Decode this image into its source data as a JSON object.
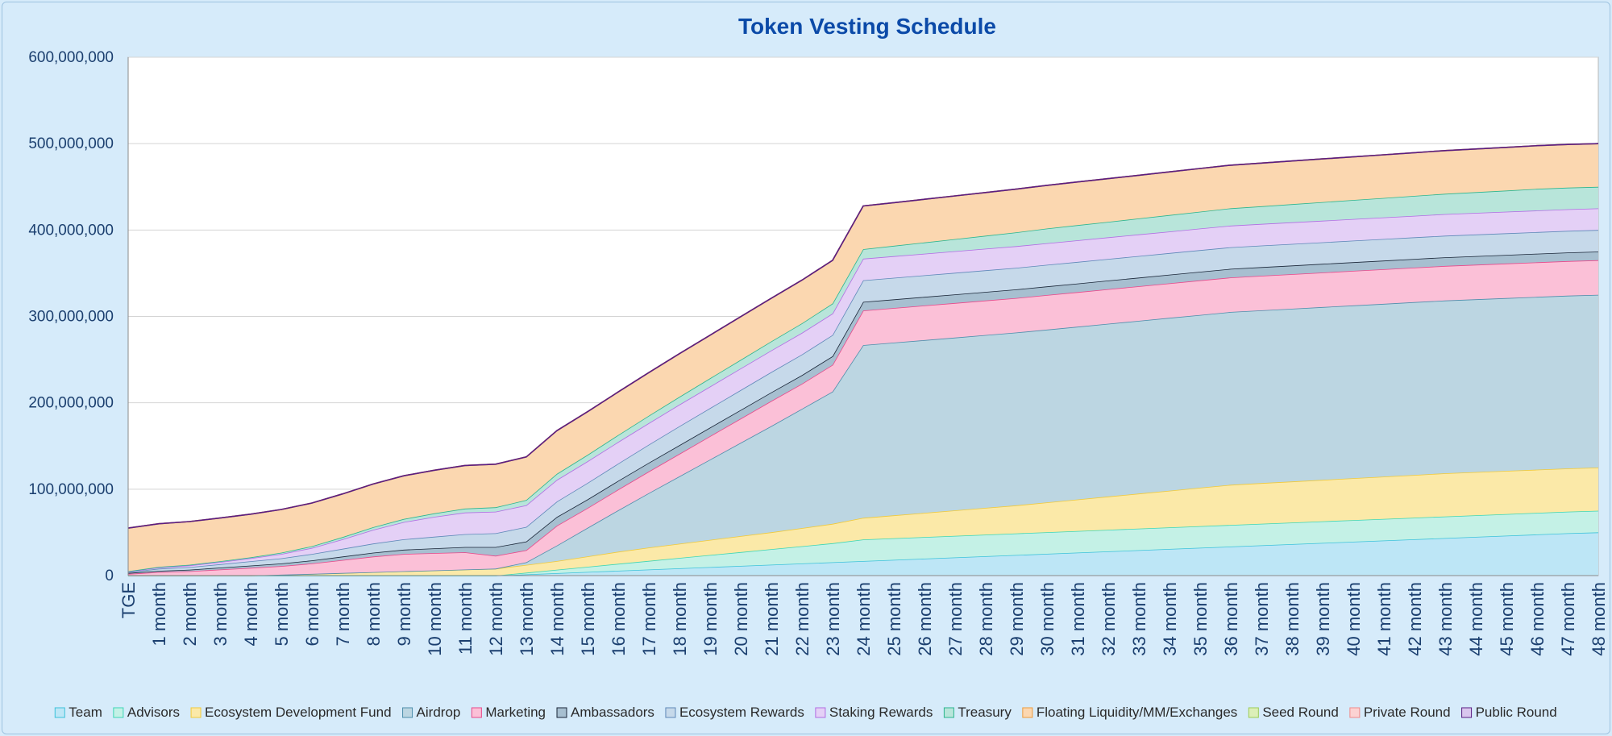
{
  "chart_data": {
    "type": "area",
    "stacked": true,
    "title": "Token Vesting Schedule",
    "xlabel": "",
    "ylabel": "",
    "ylim": [
      0,
      600000000
    ],
    "yticks": [
      0,
      100000000,
      200000000,
      300000000,
      400000000,
      500000000,
      600000000
    ],
    "ytick_labels": [
      "0",
      "100,000,000",
      "200,000,000",
      "300,000,000",
      "400,000,000",
      "500,000,000",
      "600,000,000"
    ],
    "grid": true,
    "legend_position": "bottom",
    "categories": [
      "TGE",
      "1 month",
      "2 month",
      "3 month",
      "4 month",
      "5 month",
      "6 month",
      "7 month",
      "8 month",
      "9 month",
      "10 month",
      "11 month",
      "12 month",
      "13 month",
      "14 month",
      "15 month",
      "16 month",
      "17 month",
      "18 month",
      "19 month",
      "20 month",
      "21 month",
      "22 month",
      "23 month",
      "24 month",
      "25 month",
      "26 month",
      "27 month",
      "28 month",
      "29 month",
      "30 month",
      "31 month",
      "32 month",
      "33 month",
      "34 month",
      "35 month",
      "36 month",
      "37 month",
      "38 month",
      "39 month",
      "40 month",
      "41 month",
      "42 month",
      "43 month",
      "44 month",
      "45 month",
      "46 month",
      "47 month",
      "48 month"
    ],
    "series": [
      {
        "name": "Team",
        "fill": "#bde6f6",
        "stroke": "#3cc2da",
        "values": [
          0,
          0,
          0,
          0,
          0,
          0,
          0,
          0,
          0,
          0,
          0,
          0,
          0,
          1400000,
          2800000,
          4200000,
          5600000,
          7000000,
          8400000,
          9800000,
          11200000,
          12600000,
          14000000,
          15400000,
          16800000,
          18200000,
          19600000,
          21000000,
          22400000,
          23800000,
          25200000,
          26600000,
          28000000,
          29400000,
          30800000,
          32200000,
          33600000,
          35000000,
          36400000,
          37800000,
          39200000,
          40600000,
          42000000,
          43400000,
          44800000,
          46200000,
          47600000,
          49000000,
          50000000
        ]
      },
      {
        "name": "Advisors",
        "fill": "#c4f1e6",
        "stroke": "#3dd6b5",
        "values": [
          0,
          0,
          0,
          0,
          0,
          0,
          0,
          0,
          0,
          0,
          0,
          0,
          0,
          2000000,
          4000000,
          6000000,
          8000000,
          10000000,
          12000000,
          14000000,
          16000000,
          18000000,
          20000000,
          22000000,
          25000000,
          25000000,
          25000000,
          25000000,
          25000000,
          25000000,
          25000000,
          25000000,
          25000000,
          25000000,
          25000000,
          25000000,
          25000000,
          25000000,
          25000000,
          25000000,
          25000000,
          25000000,
          25000000,
          25000000,
          25000000,
          25000000,
          25000000,
          25000000,
          25000000
        ]
      },
      {
        "name": "Ecosystem Development Fund",
        "fill": "#fbe9a8",
        "stroke": "#f0c93a",
        "values": [
          0,
          0,
          0,
          0,
          0,
          1000000,
          2000000,
          3000000,
          4000000,
          5000000,
          6000000,
          7000000,
          8000000,
          9000000,
          10000000,
          12000000,
          14000000,
          15500000,
          16500000,
          17500000,
          18500000,
          19500000,
          21000000,
          22500000,
          25000000,
          26500000,
          28000000,
          29500000,
          31000000,
          32500000,
          34500000,
          36500000,
          38500000,
          40500000,
          42500000,
          44500000,
          46500000,
          47000000,
          47500000,
          48000000,
          48500000,
          49000000,
          49500000,
          50000000,
          50000000,
          50000000,
          50000000,
          50000000,
          50000000
        ]
      },
      {
        "name": "Airdrop",
        "fill": "#bcd6e2",
        "stroke": "#4d8eab",
        "values": [
          0,
          0,
          0,
          0,
          0,
          0,
          0,
          0,
          0,
          0,
          0,
          0,
          0,
          3000000,
          18000000,
          33000000,
          48000000,
          63000000,
          78000000,
          93000000,
          108000000,
          123000000,
          138000000,
          153000000,
          200000000,
          200000000,
          200000000,
          200000000,
          200000000,
          200000000,
          200000000,
          200000000,
          200000000,
          200000000,
          200000000,
          200000000,
          200000000,
          200000000,
          200000000,
          200000000,
          200000000,
          200000000,
          200000000,
          200000000,
          200000000,
          200000000,
          200000000,
          200000000,
          200000000
        ]
      },
      {
        "name": "Marketing",
        "fill": "#fbc0d7",
        "stroke": "#e8488a",
        "values": [
          2000000,
          4000000,
          5000000,
          7000000,
          9000000,
          10000000,
          12000000,
          15000000,
          18000000,
          20000000,
          20000000,
          20000000,
          15000000,
          14000000,
          23000000,
          23000000,
          24000000,
          25000000,
          26000000,
          27000000,
          28000000,
          29000000,
          29000000,
          31000000,
          40000000,
          40000000,
          40000000,
          40000000,
          40000000,
          40000000,
          40000000,
          40000000,
          40000000,
          40000000,
          40000000,
          40000000,
          40000000,
          40000000,
          40000000,
          40000000,
          40000000,
          40000000,
          40000000,
          40000000,
          40000000,
          40000000,
          40000000,
          40000000,
          40000000
        ]
      },
      {
        "name": "Ambassadors",
        "fill": "#a7bfd0",
        "stroke": "#1a2638",
        "values": [
          1000000,
          1500000,
          1800000,
          2200000,
          2600000,
          3000000,
          3500000,
          4000000,
          4500000,
          5000000,
          5500000,
          6000000,
          10000000,
          10000000,
          10000000,
          10000000,
          10000000,
          10000000,
          10000000,
          10000000,
          10000000,
          10000000,
          10000000,
          10000000,
          10000000,
          10000000,
          10000000,
          10000000,
          10000000,
          10000000,
          10000000,
          10000000,
          10000000,
          10000000,
          10000000,
          10000000,
          10000000,
          10000000,
          10000000,
          10000000,
          10000000,
          10000000,
          10000000,
          10000000,
          10000000,
          10000000,
          10000000,
          10000000,
          10000000
        ]
      },
      {
        "name": "Ecosystem Rewards",
        "fill": "#c6d9ea",
        "stroke": "#5e88b8",
        "values": [
          1000000,
          2500000,
          3000000,
          4000000,
          5000000,
          6000000,
          7500000,
          9000000,
          10500000,
          12000000,
          13500000,
          15000000,
          16000000,
          17000000,
          18000000,
          19000000,
          20000000,
          21000000,
          22000000,
          22500000,
          23000000,
          23500000,
          24000000,
          24500000,
          25000000,
          25000000,
          25000000,
          25000000,
          25000000,
          25000000,
          25000000,
          25000000,
          25000000,
          25000000,
          25000000,
          25000000,
          25000000,
          25000000,
          25000000,
          25000000,
          25000000,
          25000000,
          25000000,
          25000000,
          25000000,
          25000000,
          25000000,
          25000000,
          25000000
        ]
      },
      {
        "name": "Staking Rewards",
        "fill": "#e4d0f6",
        "stroke": "#b16de3",
        "values": [
          500000,
          1500000,
          2000000,
          2500000,
          3500000,
          5000000,
          7000000,
          11000000,
          16000000,
          20000000,
          23000000,
          25000000,
          25000000,
          25000000,
          25000000,
          25000000,
          25000000,
          25000000,
          25000000,
          25000000,
          25000000,
          25000000,
          25000000,
          25000000,
          25000000,
          25000000,
          25000000,
          25000000,
          25000000,
          25000000,
          25000000,
          25000000,
          25000000,
          25000000,
          25000000,
          25000000,
          25000000,
          25000000,
          25000000,
          25000000,
          25000000,
          25000000,
          25000000,
          25000000,
          25000000,
          25000000,
          25000000,
          25000000,
          25000000
        ]
      },
      {
        "name": "Treasury",
        "fill": "#b8e5da",
        "stroke": "#2bb58f",
        "values": [
          500000,
          500000,
          700000,
          900000,
          1000000,
          1500000,
          2000000,
          2500000,
          3000000,
          3500000,
          4000000,
          4500000,
          5000000,
          6000000,
          7000000,
          7500000,
          8000000,
          8500000,
          9000000,
          9500000,
          10000000,
          10500000,
          11000000,
          11500000,
          11000000,
          12000000,
          13000000,
          14000000,
          15000000,
          16000000,
          17000000,
          17500000,
          18000000,
          18500000,
          19000000,
          19500000,
          20000000,
          20500000,
          21000000,
          21500000,
          22000000,
          22500000,
          23000000,
          23500000,
          24000000,
          24500000,
          25000000,
          25000000,
          25000000
        ]
      },
      {
        "name": "Floating Liquidity/MM/Exchanges",
        "fill": "#fbd7b0",
        "stroke": "#ee9b3a",
        "values": [
          50000000,
          50000000,
          50000000,
          50000000,
          50000000,
          50000000,
          50000000,
          50000000,
          50000000,
          50000000,
          50000000,
          50000000,
          50000000,
          50000000,
          50000000,
          50000000,
          50000000,
          50000000,
          50000000,
          50000000,
          50000000,
          50000000,
          50000000,
          50000000,
          50000000,
          50000000,
          50000000,
          50000000,
          50000000,
          50000000,
          50000000,
          50000000,
          50000000,
          50000000,
          50000000,
          50000000,
          50000000,
          50000000,
          50000000,
          50000000,
          50000000,
          50000000,
          50000000,
          50000000,
          50000000,
          50000000,
          50000000,
          50000000,
          50000000
        ]
      },
      {
        "name": "Seed Round",
        "fill": "#dcefb8",
        "stroke": "#9ccc55",
        "values": [
          0,
          0,
          0,
          0,
          0,
          0,
          0,
          0,
          0,
          0,
          0,
          0,
          0,
          0,
          0,
          0,
          0,
          0,
          0,
          0,
          0,
          0,
          0,
          0,
          0,
          0,
          0,
          0,
          0,
          0,
          0,
          0,
          0,
          0,
          0,
          0,
          0,
          0,
          0,
          0,
          0,
          0,
          0,
          0,
          0,
          0,
          0,
          0,
          0
        ]
      },
      {
        "name": "Private Round",
        "fill": "#fcd2d2",
        "stroke": "#f08a8a",
        "values": [
          0,
          0,
          0,
          0,
          0,
          0,
          0,
          0,
          0,
          0,
          0,
          0,
          0,
          0,
          0,
          0,
          0,
          0,
          0,
          0,
          0,
          0,
          0,
          0,
          0,
          0,
          0,
          0,
          0,
          0,
          0,
          0,
          0,
          0,
          0,
          0,
          0,
          0,
          0,
          0,
          0,
          0,
          0,
          0,
          0,
          0,
          0,
          0,
          0
        ]
      },
      {
        "name": "Public Round",
        "fill": "#d9c6ee",
        "stroke": "#5a1e82",
        "values": [
          0,
          0,
          0,
          0,
          0,
          0,
          0,
          0,
          0,
          0,
          0,
          0,
          0,
          0,
          0,
          0,
          0,
          0,
          0,
          0,
          0,
          0,
          0,
          0,
          0,
          0,
          0,
          0,
          0,
          0,
          0,
          0,
          0,
          0,
          0,
          0,
          0,
          0,
          0,
          0,
          0,
          0,
          0,
          0,
          0,
          0,
          0,
          0,
          0
        ]
      }
    ]
  }
}
